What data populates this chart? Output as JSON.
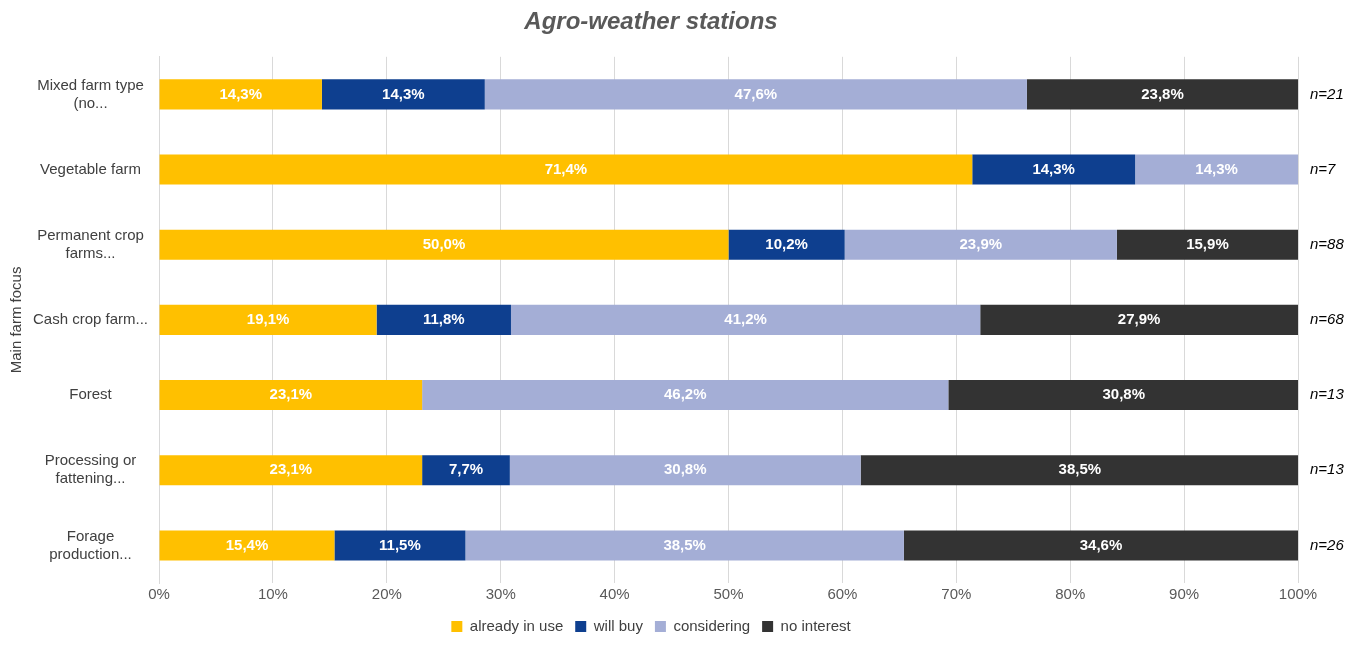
{
  "chart_data": {
    "type": "bar",
    "orientation": "horizontal",
    "stacked": true,
    "title": "Agro-weather stations",
    "ylabel": "Main farm focus",
    "categories": [
      "Mixed farm type (no...",
      "Vegetable farm",
      "Permanent crop farms...",
      "Cash crop farm...",
      "Forest",
      "Processing or fattening...",
      "Forage production..."
    ],
    "series": [
      {
        "name": "already in use",
        "color": "#ffc000",
        "values": [
          14.3,
          71.4,
          50.0,
          19.1,
          23.1,
          23.1,
          15.4
        ],
        "value_labels": [
          "14,3%",
          "71,4%",
          "50,0%",
          "19,1%",
          "23,1%",
          "23,1%",
          "15,4%"
        ]
      },
      {
        "name": "will buy",
        "color": "#0e3f8f",
        "values": [
          14.3,
          14.3,
          10.2,
          11.8,
          0,
          7.7,
          11.5
        ],
        "value_labels": [
          "14,3%",
          "14,3%",
          "10,2%",
          "11,8%",
          null,
          "7,7%",
          "11,5%"
        ]
      },
      {
        "name": "considering",
        "color": "#a4aed6",
        "values": [
          47.6,
          14.3,
          23.9,
          41.2,
          46.2,
          30.8,
          38.5
        ],
        "value_labels": [
          "47,6%",
          "14,3%",
          "23,9%",
          "41,2%",
          "46,2%",
          "30,8%",
          "38,5%"
        ]
      },
      {
        "name": "no interest",
        "color": "#333333",
        "values": [
          23.8,
          0,
          15.9,
          27.9,
          30.8,
          38.5,
          34.6
        ],
        "value_labels": [
          "23,8%",
          null,
          "15,9%",
          "27,9%",
          "30,8%",
          "38,5%",
          "34,6%"
        ]
      }
    ],
    "xlim": [
      0,
      100
    ],
    "xticks": [
      {
        "value": 0,
        "label": "0%"
      },
      {
        "value": 10,
        "label": "10%"
      },
      {
        "value": 20,
        "label": "20%"
      },
      {
        "value": 30,
        "label": "30%"
      },
      {
        "value": 40,
        "label": "40%"
      },
      {
        "value": 50,
        "label": "50%"
      },
      {
        "value": 60,
        "label": "60%"
      },
      {
        "value": 70,
        "label": "70%"
      },
      {
        "value": 80,
        "label": "80%"
      },
      {
        "value": 90,
        "label": "90%"
      },
      {
        "value": 100,
        "label": "100%"
      }
    ],
    "grid": "x",
    "legend": "bottom",
    "annotations": [
      "n=21",
      "n=7",
      "n=88",
      "n=68",
      "n=13",
      "n=13",
      "n=26"
    ]
  }
}
